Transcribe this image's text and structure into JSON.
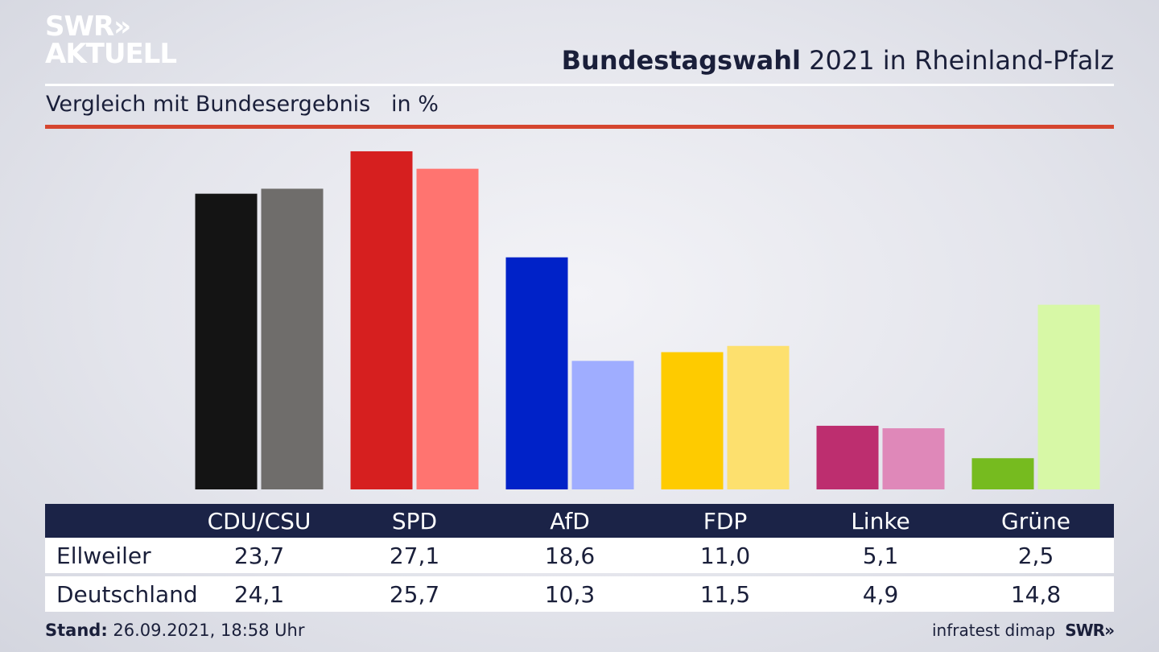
{
  "brand": {
    "logo_line1": "SWR»",
    "logo_line2": "AKTUELL",
    "footer_logo": "SWR»"
  },
  "header": {
    "title_bold": "Bundestagswahl",
    "title_rest": " 2021 in Rheinland-Pfalz"
  },
  "subtitle": "Vergleich mit Bundesergebnis   in %",
  "table": {
    "headers": [
      "CDU/CSU",
      "SPD",
      "AfD",
      "FDP",
      "Linke",
      "Grüne"
    ],
    "rows": [
      {
        "label": "Ellweiler",
        "values": [
          "23,7",
          "27,1",
          "18,6",
          "11,0",
          "5,1",
          "2,5"
        ]
      },
      {
        "label": "Deutschland",
        "values": [
          "24,1",
          "25,7",
          "10,3",
          "11,5",
          "4,9",
          "14,8"
        ]
      }
    ]
  },
  "footer": {
    "stand_label": "Stand:",
    "stand_value": " 26.09.2021, 18:58 Uhr",
    "source": "infratest dimap"
  },
  "colors": {
    "ellweiler": [
      "#141414",
      "#d61f1f",
      "#0022c8",
      "#fecb00",
      "#bd2e6f",
      "#76bb1f"
    ],
    "deutschland": [
      "#6f6d6b",
      "#ff7470",
      "#9fadff",
      "#fde06e",
      "#df88b9",
      "#d7f8a6"
    ],
    "accent_red": "#d5452f",
    "table_header": "#1b2347"
  },
  "chart_data": {
    "type": "bar",
    "categories": [
      "CDU/CSU",
      "SPD",
      "AfD",
      "FDP",
      "Linke",
      "Grüne"
    ],
    "series": [
      {
        "name": "Ellweiler",
        "values": [
          23.7,
          27.1,
          18.6,
          11.0,
          5.1,
          2.5
        ]
      },
      {
        "name": "Deutschland",
        "values": [
          24.1,
          25.7,
          10.3,
          11.5,
          4.9,
          14.8
        ]
      }
    ],
    "ylabel": "in %",
    "grid": false,
    "legend": "table-below"
  }
}
